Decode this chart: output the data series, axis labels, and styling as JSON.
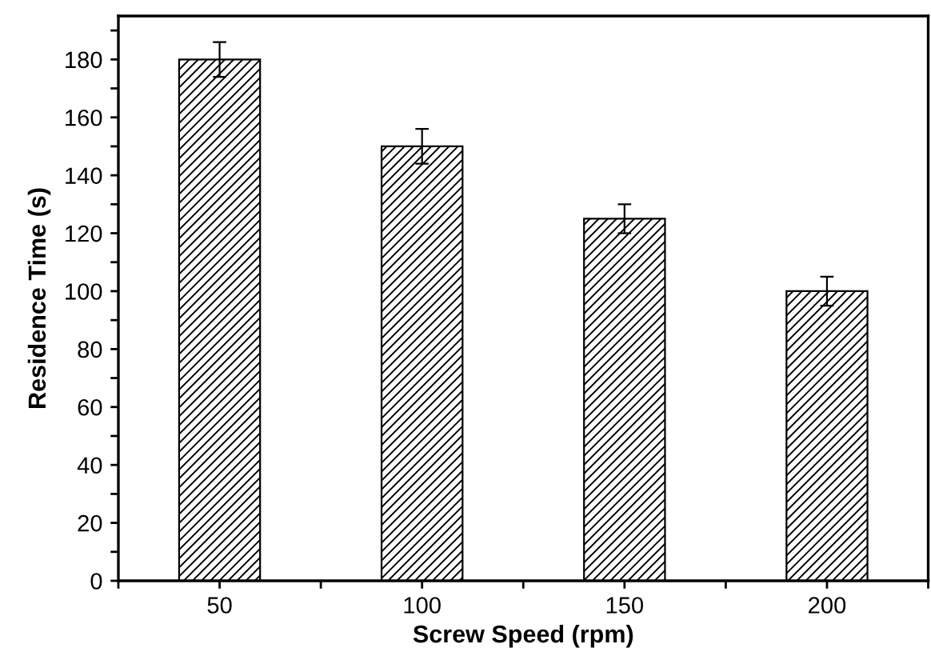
{
  "chart_data": {
    "type": "bar",
    "xlabel": "Screw Speed (rpm)",
    "ylabel": "Residence Time (s)",
    "x": [
      50,
      100,
      150,
      200
    ],
    "values": [
      180,
      150,
      125,
      100
    ],
    "errors": [
      6,
      6,
      5,
      5
    ],
    "color": "#000000",
    "xlim": [
      25,
      225
    ],
    "xticks": [
      {
        "value": 25,
        "label": null
      },
      50,
      {
        "value": 75,
        "label": null
      },
      100,
      {
        "value": 125,
        "label": null
      },
      150,
      {
        "value": 175,
        "label": null
      },
      200,
      {
        "value": 225,
        "label": null
      }
    ],
    "ylim": [
      0,
      195
    ],
    "yticks": [
      0,
      {
        "value": 10,
        "label": null
      },
      20,
      {
        "value": 30,
        "label": null
      },
      40,
      {
        "value": 50,
        "label": null
      },
      60,
      {
        "value": 70,
        "label": null
      },
      80,
      {
        "value": 90,
        "label": null
      },
      100,
      {
        "value": 110,
        "label": null
      },
      120,
      {
        "value": 130,
        "label": null
      },
      140,
      {
        "value": 150,
        "label": null
      },
      160,
      {
        "value": 170,
        "label": null
      },
      180,
      {
        "value": 190,
        "label": null
      }
    ],
    "grid": false,
    "legend": false
  }
}
